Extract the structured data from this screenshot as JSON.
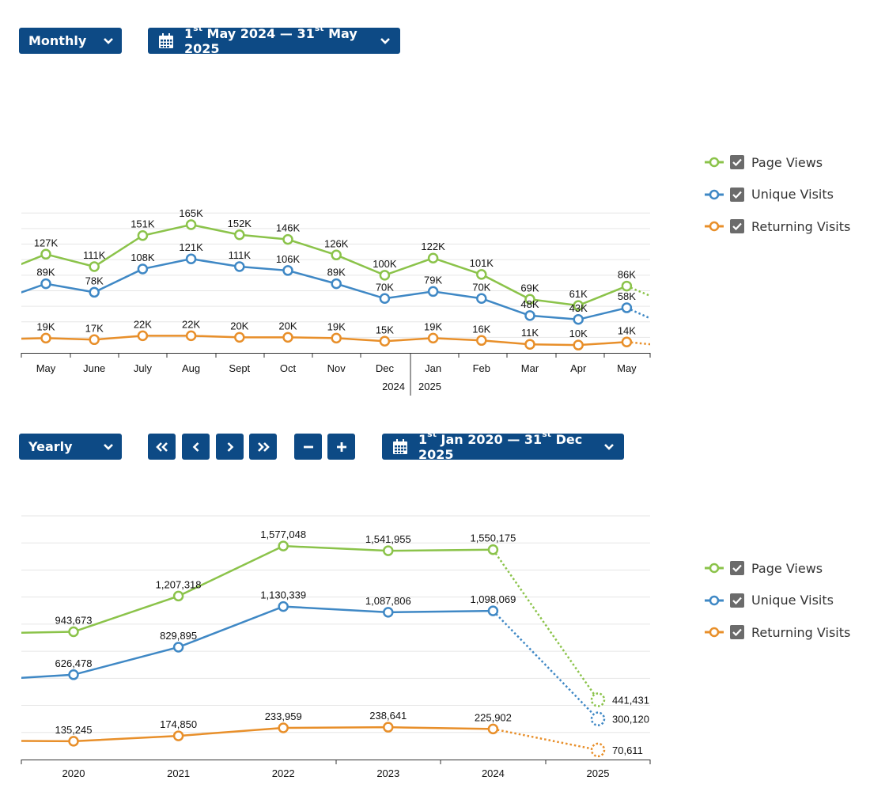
{
  "toolbar1": {
    "period_select": "Monthly",
    "date_range": {
      "start_day": "1",
      "start_suffix": "st",
      "start_rest": "May 2024 —",
      "end_day": "31",
      "end_suffix": "st",
      "end_rest": "May 2025"
    }
  },
  "toolbar2": {
    "period_select": "Yearly",
    "date_range": {
      "start_day": "1",
      "start_suffix": "st",
      "start_rest": "Jan 2020 —",
      "end_day": "31",
      "end_suffix": "st",
      "end_rest": "Dec 2025"
    }
  },
  "icons": {
    "calendar": "calendar-icon",
    "chevron": "chevron-down-icon",
    "first": "double-chevron-left-icon",
    "prev": "chevron-left-icon",
    "next": "chevron-right-icon",
    "last": "double-chevron-right-icon",
    "zoom_out": "minus-icon",
    "zoom_in": "plus-icon"
  },
  "legend": [
    {
      "label": "Page Views",
      "color": "#8bc34a"
    },
    {
      "label": "Unique Visits",
      "color": "#3f88c5"
    },
    {
      "label": "Returning Visits",
      "color": "#e88f2a"
    }
  ],
  "chart_data": [
    {
      "type": "line",
      "title": "",
      "categories": [
        "May",
        "June",
        "July",
        "Aug",
        "Sept",
        "Oct",
        "Nov",
        "Dec",
        "Jan",
        "Feb",
        "Mar",
        "Apr",
        "May"
      ],
      "year_labels": [
        "2024",
        "2025"
      ],
      "series": [
        {
          "name": "Page Views",
          "values": [
            127000,
            111000,
            151000,
            165000,
            152000,
            146000,
            126000,
            100000,
            122000,
            101000,
            69000,
            61000,
            86000
          ],
          "labels": [
            "127K",
            "111K",
            "151K",
            "165K",
            "152K",
            "146K",
            "126K",
            "100K",
            "122K",
            "101K",
            "69K",
            "61K",
            "86K"
          ]
        },
        {
          "name": "Unique Visits",
          "values": [
            89000,
            78000,
            108000,
            121000,
            111000,
            106000,
            89000,
            70000,
            79000,
            70000,
            48000,
            43000,
            58000
          ],
          "labels": [
            "89K",
            "78K",
            "108K",
            "121K",
            "111K",
            "106K",
            "89K",
            "70K",
            "79K",
            "70K",
            "48K",
            "43K",
            "58K"
          ]
        },
        {
          "name": "Returning Visits",
          "values": [
            19000,
            17000,
            22000,
            22000,
            20000,
            20000,
            19000,
            15000,
            19000,
            16000,
            11000,
            10000,
            14000
          ],
          "labels": [
            "19K",
            "17K",
            "22K",
            "22K",
            "20K",
            "20K",
            "19K",
            "15K",
            "19K",
            "16K",
            "11K",
            "10K",
            "14K"
          ]
        }
      ],
      "ylim": [
        0,
        180000
      ],
      "grid": true,
      "legend_position": "right"
    },
    {
      "type": "line",
      "title": "",
      "categories": [
        "2020",
        "2021",
        "2022",
        "2023",
        "2024",
        "2025"
      ],
      "series": [
        {
          "name": "Page Views",
          "values": [
            943673,
            1207318,
            1577048,
            1541955,
            1550175,
            441431
          ],
          "labels": [
            "943,673",
            "1,207,318",
            "1,577,048",
            "1,541,955",
            "1,550,175",
            "441,431"
          ]
        },
        {
          "name": "Unique Visits",
          "values": [
            626478,
            829895,
            1130339,
            1087806,
            1098069,
            300120
          ],
          "labels": [
            "626,478",
            "829,895",
            "1,130,339",
            "1,087,806",
            "1,098,069",
            "300,120"
          ]
        },
        {
          "name": "Returning Visits",
          "values": [
            135245,
            174850,
            233959,
            238641,
            225902,
            70611
          ],
          "labels": [
            "135,245",
            "174,850",
            "233,959",
            "238,641",
            "225,902",
            "70,611"
          ]
        }
      ],
      "ylim": [
        0,
        1800000
      ],
      "grid": true,
      "legend_position": "right",
      "partial_period": "2025"
    }
  ]
}
